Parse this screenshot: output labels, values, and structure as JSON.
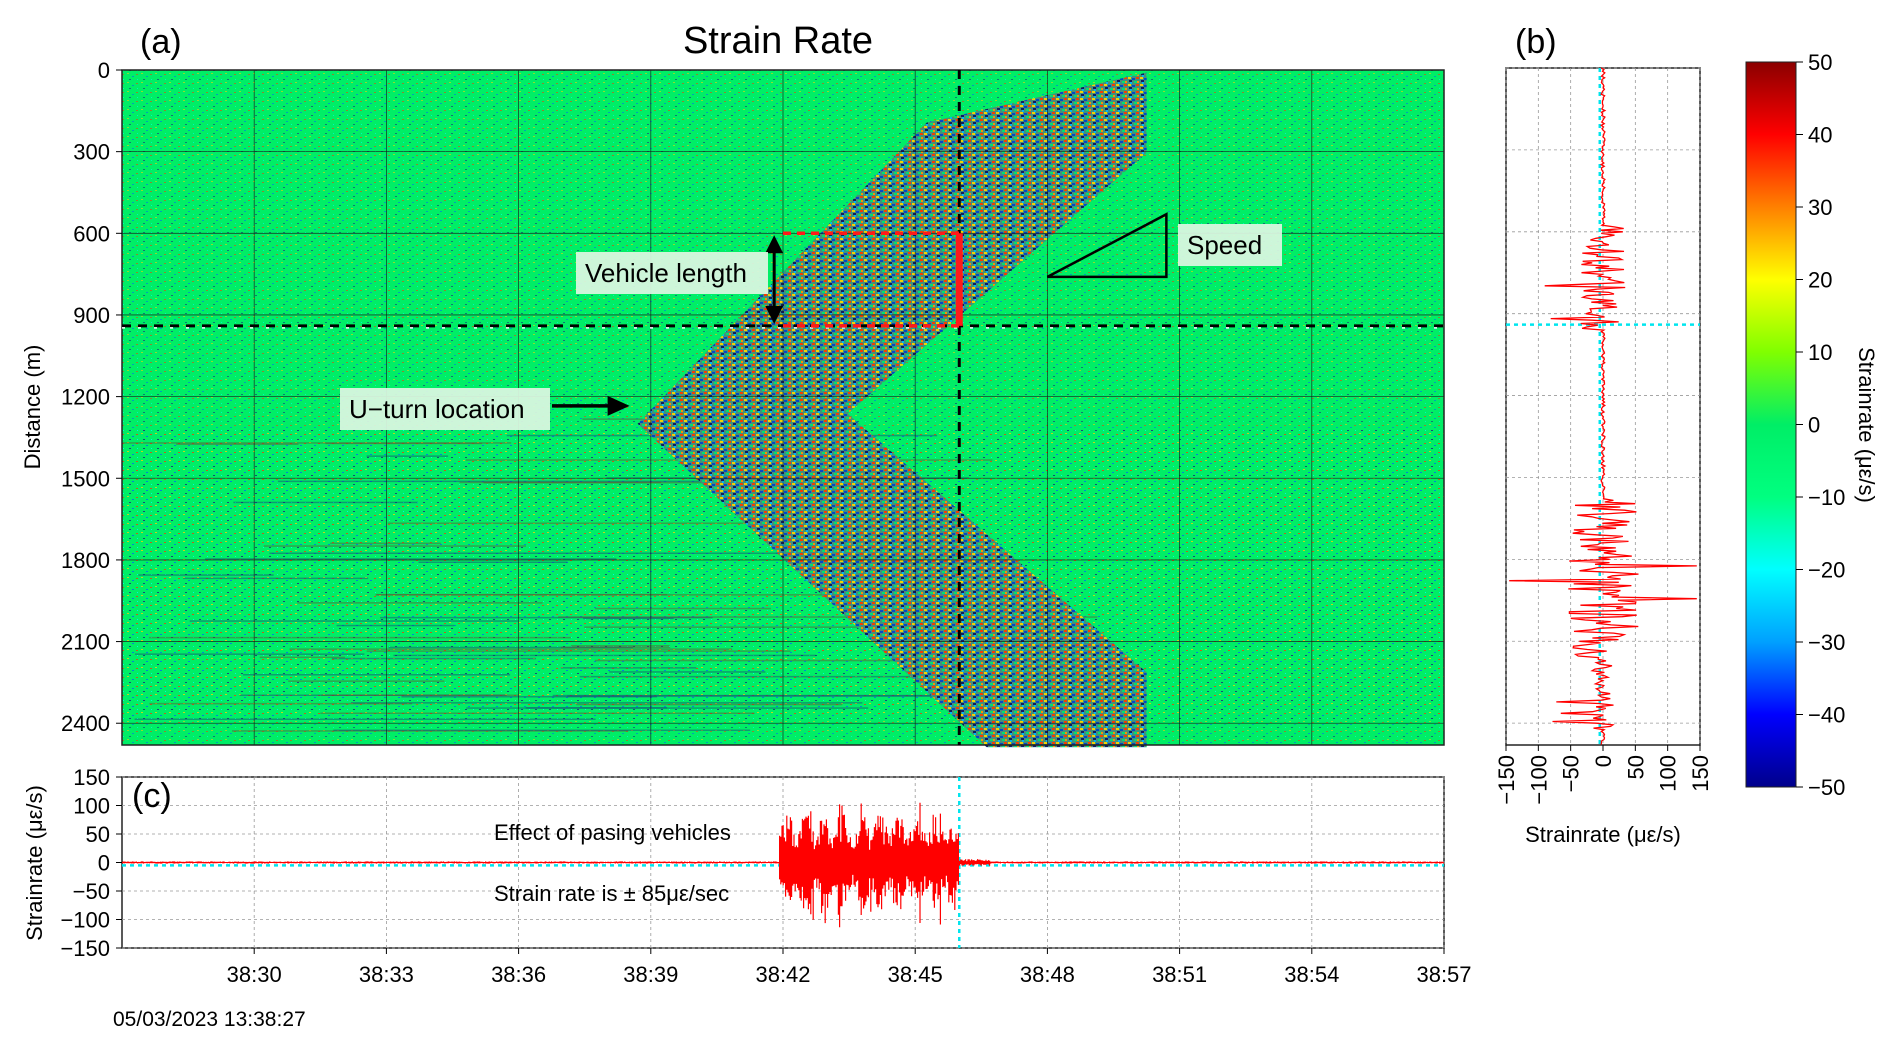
{
  "chart_data": [
    {
      "panel_label": "(a)",
      "type": "heatmap",
      "title": "Strain Rate",
      "ylabel": "Distance (m)",
      "x_ticks": [
        "38:30",
        "38:33",
        "38:36",
        "38:39",
        "38:42",
        "38:45",
        "38:48",
        "38:51",
        "38:54",
        "38:57"
      ],
      "y_ticks": [
        "0",
        "300",
        "600",
        "900",
        "1200",
        "1500",
        "1800",
        "2100",
        "2400"
      ],
      "x_range_seconds": [
        27,
        57
      ],
      "y_range_m": [
        0,
        2480
      ],
      "background_value": 0,
      "vehicle_track": [
        {
          "t": 38.7,
          "d": 1300
        },
        {
          "t": 49.8,
          "d": 230
        },
        {
          "t": 49.8,
          "d": 2360
        }
      ],
      "marker_time_s": 46,
      "marker_distance_m": 940,
      "vehicle_length_range_m": [
        600,
        940
      ],
      "speed_triangle": {
        "t0": 48.0,
        "d0": 760,
        "t1": 50.7,
        "d1": 530
      },
      "annotations": [
        "Vehicle length",
        "Speed",
        "U−turn location"
      ],
      "grid": true
    },
    {
      "panel_label": "(b)",
      "type": "line",
      "xlabel": "Strainrate (με/s)",
      "x_ticks": [
        "−150",
        "−100",
        "−50",
        "0",
        "50",
        "100",
        "150"
      ],
      "xlim": [
        -150,
        150
      ],
      "reference_distance_m": 940,
      "series_color": "#ff0000",
      "reference_color": "#00e5ee",
      "grid": true
    },
    {
      "panel_label": "(c)",
      "type": "line",
      "ylabel": "Strainrate (με/s)",
      "y_ticks": [
        "150",
        "100",
        "50",
        "0",
        "−50",
        "−100",
        "−150"
      ],
      "ylim": [
        -150,
        150
      ],
      "x_ticks": [
        "38:30",
        "38:33",
        "38:36",
        "38:39",
        "38:42",
        "38:45",
        "38:48",
        "38:51",
        "38:54",
        "38:57"
      ],
      "active_window_s": [
        41.9,
        46.0
      ],
      "reference_time_s": 46,
      "peak_value": 85,
      "annotations": [
        "Effect of pasing vehicles",
        "Strain rate is ± 85με/sec"
      ],
      "timestamp": "05/03/2023 13:38:27",
      "series_color": "#ff0000",
      "reference_color": "#00e5ee",
      "grid": true
    },
    {
      "type": "colorbar",
      "label": "Strainrate (με/s)",
      "ticks": [
        "50",
        "40",
        "30",
        "20",
        "10",
        "0",
        "−10",
        "−20",
        "−30",
        "−40",
        "−50"
      ],
      "range": [
        -50,
        50
      ],
      "colormap": [
        "#00008b",
        "#0000ff",
        "#00a0ff",
        "#00ffff",
        "#00ff80",
        "#00ee66",
        "#80ff00",
        "#ffff00",
        "#ff8000",
        "#ff0000",
        "#8b0000"
      ]
    }
  ]
}
